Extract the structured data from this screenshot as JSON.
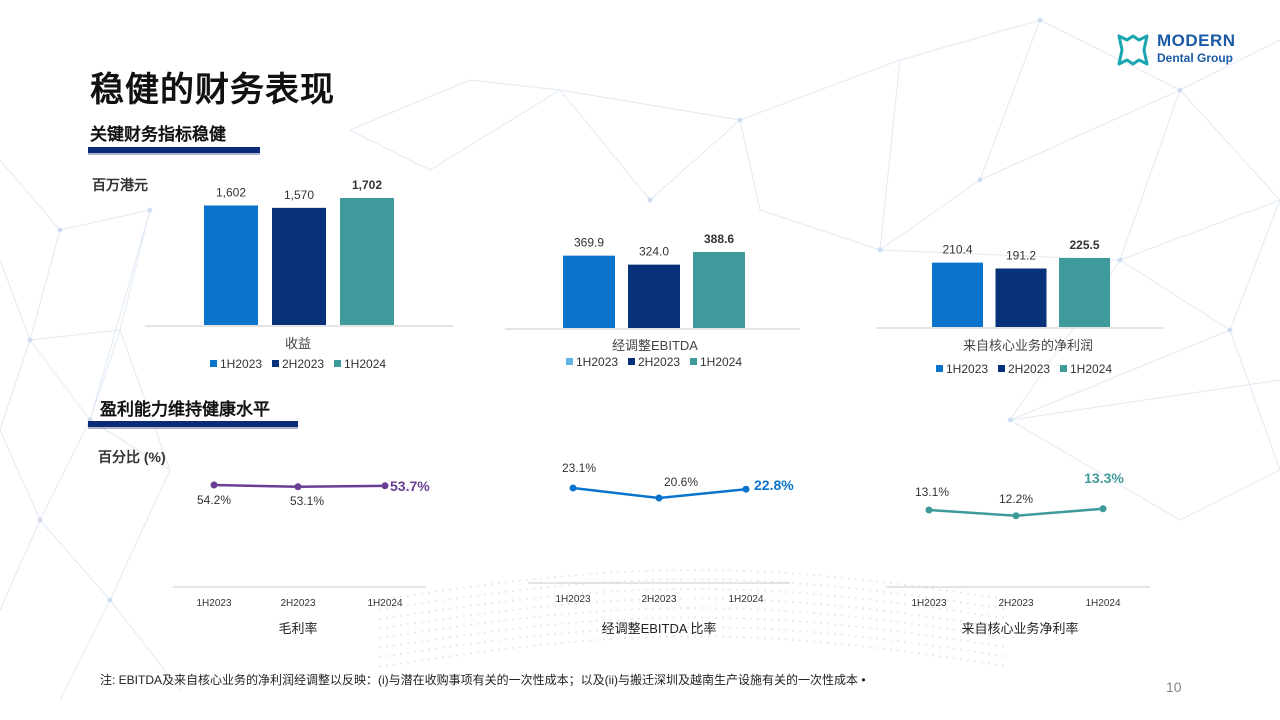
{
  "page": {
    "title": "稳健的财务表现",
    "section1": "关键财务指标稳健",
    "section2": "盈利能力维持健康水平",
    "unit1": "百万港元",
    "unit2": "百分比 (%)",
    "footnote": "注: EBITDA及来自核心业务的净利润经调整以反映：(i)与潜在收购事项有关的一次性成本；以及(ii)与搬迁深圳及越南生产设施有关的一次性成本 •",
    "page_number": "10",
    "logo": {
      "line1": "MODERN",
      "line2": "Dental Group",
      "icon": "tooth-logo-icon"
    }
  },
  "colors": {
    "bar_1H2023": "#0a74cc",
    "bar_2H2023": "#073178",
    "bar_1H2024": "#3f9a9b",
    "legend_1H2023_light": "#63b4e6",
    "line_margin": "#6a3d94",
    "line_ebitda": "#0a74cc",
    "line_net": "#3f9a9b",
    "navy": "#0b2a78"
  },
  "chart_data": [
    {
      "type": "bar",
      "xlabel": "收益",
      "categories": [
        "1H2023",
        "2H2023",
        "1H2024"
      ],
      "values": [
        1602,
        1570,
        1702
      ],
      "labels": [
        "1,602",
        "1,570",
        "1,702"
      ],
      "legend": [
        "1H2023",
        "2H2023",
        "1H2024"
      ]
    },
    {
      "type": "bar",
      "xlabel": "经调整EBITDA",
      "categories": [
        "1H2023",
        "2H2023",
        "1H2024"
      ],
      "values": [
        369.9,
        324.0,
        388.6
      ],
      "labels": [
        "369.9",
        "324.0",
        "388.6"
      ],
      "legend": [
        "1H2023",
        "2H2023",
        "1H2024"
      ]
    },
    {
      "type": "bar",
      "xlabel": "来自核心业务的净利润",
      "categories": [
        "1H2023",
        "2H2023",
        "1H2024"
      ],
      "values": [
        210.4,
        191.2,
        225.5
      ],
      "labels": [
        "210.4",
        "191.2",
        "225.5"
      ],
      "legend": [
        "1H2023",
        "2H2023",
        "1H2024"
      ]
    },
    {
      "type": "line",
      "xlabel": "毛利率",
      "categories": [
        "1H2023",
        "2H2023",
        "1H2024"
      ],
      "values": [
        54.2,
        53.1,
        53.7
      ],
      "labels": [
        "54.2%",
        "53.1%",
        "53.7%"
      ]
    },
    {
      "type": "line",
      "xlabel": "经调整EBITDA 比率",
      "categories": [
        "1H2023",
        "2H2023",
        "1H2024"
      ],
      "values": [
        23.1,
        20.6,
        22.8
      ],
      "labels": [
        "23.1%",
        "20.6%",
        "22.8%"
      ]
    },
    {
      "type": "line",
      "xlabel": "来自核心业务净利率",
      "categories": [
        "1H2023",
        "2H2023",
        "1H2024"
      ],
      "values": [
        13.1,
        12.2,
        13.3
      ],
      "labels": [
        "13.1%",
        "12.2%",
        "13.3%"
      ]
    }
  ]
}
